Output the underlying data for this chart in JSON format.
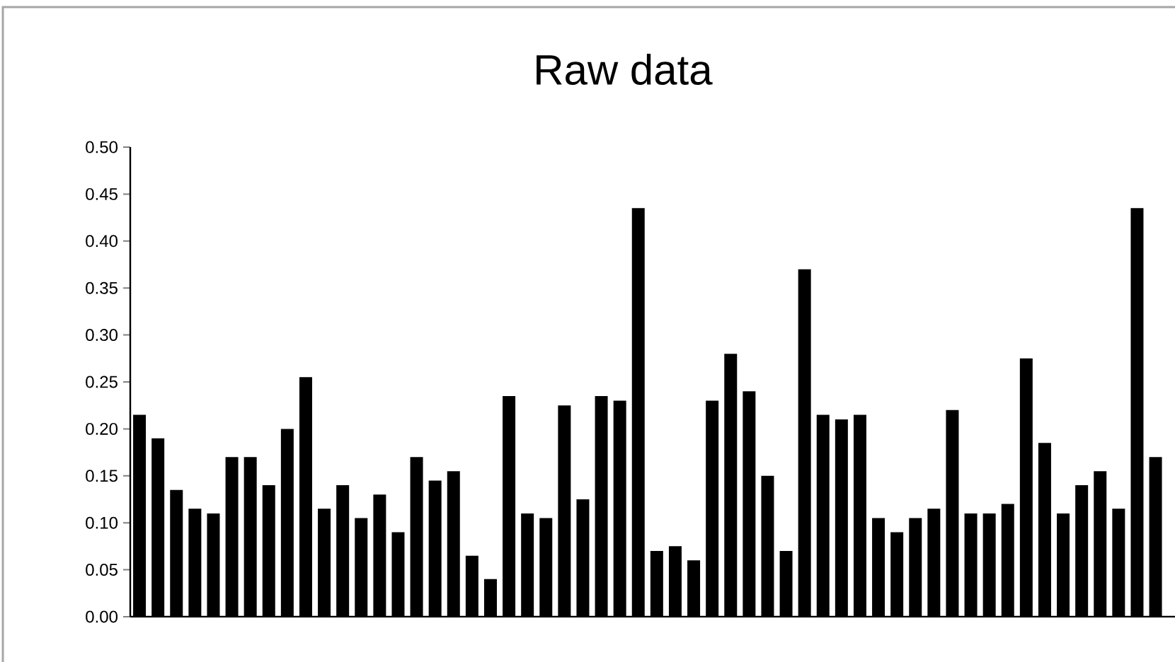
{
  "chart_data": {
    "type": "bar",
    "title": "Raw data",
    "categories": [
      null,
      null,
      null,
      null,
      null,
      null,
      null,
      null,
      null,
      null,
      null,
      null,
      null,
      null,
      null,
      null,
      null,
      null,
      null,
      null,
      null,
      null,
      null,
      null,
      null,
      null,
      null,
      null,
      null,
      null,
      null,
      null,
      null,
      null,
      null,
      null,
      null,
      null,
      null,
      null,
      null,
      null,
      null,
      null,
      null,
      null,
      null,
      null,
      null,
      null,
      null,
      null,
      null,
      null,
      null,
      null
    ],
    "values": [
      0.215,
      0.19,
      0.135,
      0.115,
      0.11,
      0.17,
      0.17,
      0.14,
      0.2,
      0.255,
      0.115,
      0.14,
      0.105,
      0.13,
      0.09,
      0.17,
      0.145,
      0.155,
      0.065,
      0.04,
      0.235,
      0.11,
      0.105,
      0.225,
      0.125,
      0.235,
      0.23,
      0.435,
      0.07,
      0.075,
      0.06,
      0.23,
      0.28,
      0.24,
      0.15,
      0.07,
      0.37,
      0.215,
      0.21,
      0.215,
      0.105,
      0.09,
      0.105,
      0.115,
      0.22,
      0.11,
      0.11,
      0.12,
      0.275,
      0.185,
      0.11,
      0.14,
      0.155,
      0.115,
      0.435,
      0.17
    ],
    "color": "#000000",
    "ylim": [
      0,
      0.5
    ],
    "yticks": [
      {
        "value": 0,
        "label": "0.00"
      },
      {
        "value": 0.05,
        "label": "0.05"
      },
      {
        "value": 0.1,
        "label": "0.10"
      },
      {
        "value": 0.15,
        "label": "0.15"
      },
      {
        "value": 0.2,
        "label": "0.20"
      },
      {
        "value": 0.25,
        "label": "0.25"
      },
      {
        "value": 0.3,
        "label": "0.30"
      },
      {
        "value": 0.35,
        "label": "0.35"
      },
      {
        "value": 0.4,
        "label": "0.40"
      },
      {
        "value": 0.45,
        "label": "0.45"
      },
      {
        "value": 0.5,
        "label": "0.50"
      }
    ],
    "grid": false
  }
}
